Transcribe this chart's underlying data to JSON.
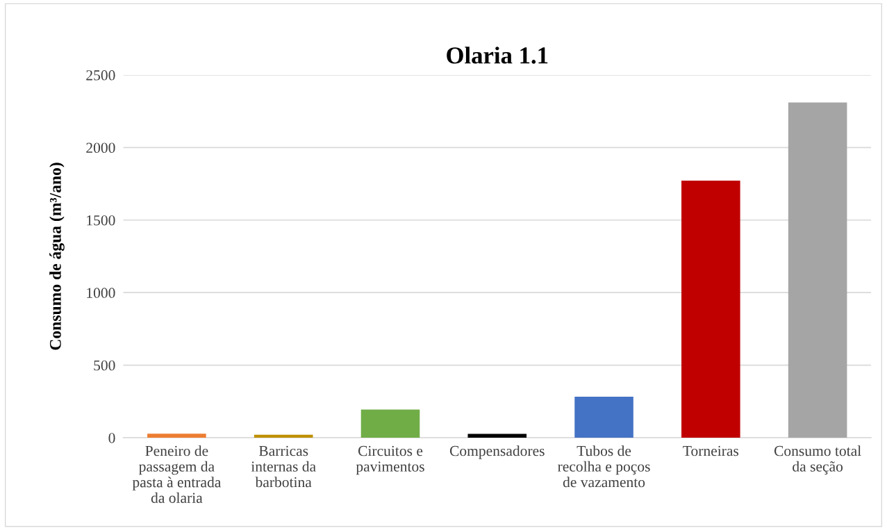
{
  "chart_data": {
    "type": "bar",
    "title": "Olaria 1.1",
    "ylabel": "Consumo de água (m³/ano)",
    "categories": [
      "Peneiro de\npassagem da\npasta à entrada\nda olaria",
      "Barricas\ninternas da\nbarbotina",
      "Circuitos e\npavimentos",
      "Compensadores",
      "Tubos de\nrecolha e poços\nde vazamento",
      "Torneiras",
      "Consumo total\nda seção"
    ],
    "values": [
      28,
      21,
      194,
      26,
      283,
      1772,
      2310
    ],
    "colors": [
      "#ed7d31",
      "#bf9000",
      "#70ad47",
      "#000000",
      "#4472c4",
      "#c00000",
      "#a5a5a5"
    ],
    "ylim": [
      0,
      2500
    ],
    "yticks": [
      0,
      500,
      1000,
      1500,
      2000,
      2500
    ],
    "grid": "y",
    "legend": false
  }
}
